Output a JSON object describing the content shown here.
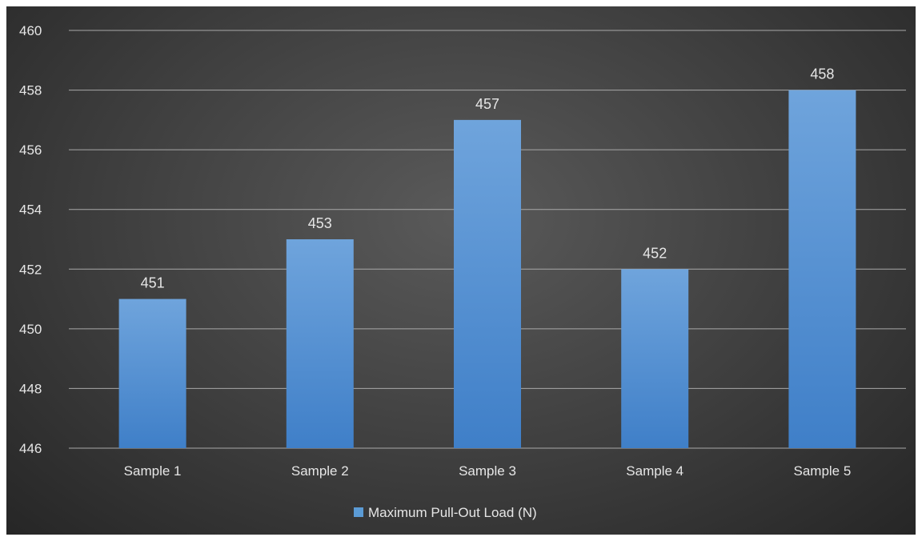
{
  "chart_data": {
    "type": "bar",
    "categories": [
      "Sample 1",
      "Sample 2",
      "Sample 3",
      "Sample 4",
      "Sample 5"
    ],
    "series": [
      {
        "name": "Maximum Pull-Out Load (N)",
        "values": [
          451,
          453,
          457,
          452,
          458
        ]
      }
    ],
    "data_labels": [
      "451",
      "453",
      "457",
      "452",
      "458"
    ],
    "ylim": [
      446,
      460
    ],
    "yticks": [
      446,
      448,
      450,
      452,
      454,
      456,
      458,
      460
    ],
    "ytick_labels": [
      "446",
      "448",
      "450",
      "452",
      "454",
      "456",
      "458",
      "460"
    ],
    "grid": true,
    "legend_position": "bottom",
    "colors": {
      "bar_top": "#6fa4dc",
      "bar_bottom": "#3f7fc8",
      "legend_swatch": "#5b9bd5"
    }
  }
}
